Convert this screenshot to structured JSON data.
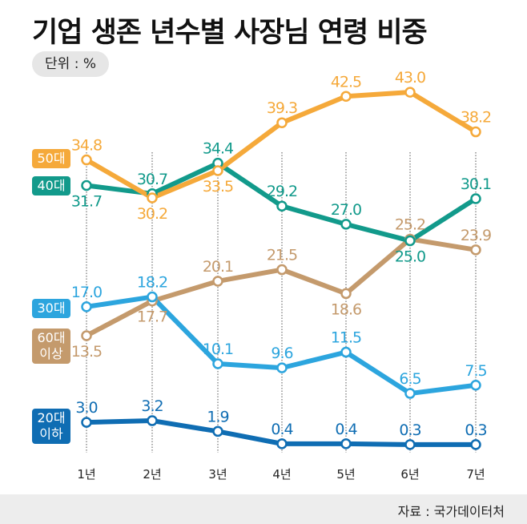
{
  "title": "기업 생존 년수별 사장님 연령 비중",
  "unit_label": "단위 : %",
  "source": "자료 : 국가데이터처",
  "chart_data": {
    "type": "line",
    "title": "기업 생존 년수별 사장님 연령 비중",
    "unit": "%",
    "categories": [
      "1년",
      "2년",
      "3년",
      "4년",
      "5년",
      "6년",
      "7년"
    ],
    "grid": "vertical dotted lines",
    "legend": "left",
    "series": [
      {
        "name": "50대",
        "color": "#f5a93a",
        "values": [
          34.8,
          30.2,
          33.5,
          39.3,
          42.5,
          43.0,
          38.2
        ],
        "labels": [
          "34.8",
          "30.2",
          "33.5",
          "39.3",
          "42.5",
          "43.0",
          "38.2"
        ]
      },
      {
        "name": "40대",
        "color": "#129a8b",
        "values": [
          31.7,
          30.7,
          34.4,
          29.2,
          27.0,
          25.0,
          30.1
        ],
        "labels": [
          "31.7",
          "30.7",
          "34.4",
          "29.2",
          "27.0",
          "25.0",
          "30.1"
        ]
      },
      {
        "name": "30대",
        "color": "#2ca5de",
        "values": [
          17.0,
          18.2,
          10.1,
          9.6,
          11.5,
          6.5,
          7.5
        ],
        "labels": [
          "17.0",
          "18.2",
          "10.1",
          "9.6",
          "11.5",
          "6.5",
          "7.5"
        ]
      },
      {
        "name": "60대 이상",
        "color": "#c49a6c",
        "values": [
          13.5,
          17.7,
          20.1,
          21.5,
          18.6,
          25.2,
          23.9
        ],
        "labels": [
          "13.5",
          "17.7",
          "20.1",
          "21.5",
          "18.6",
          "25.2",
          "23.9"
        ]
      },
      {
        "name": "20대 이하",
        "color": "#0f6db3",
        "values": [
          3.0,
          3.2,
          1.9,
          0.4,
          0.4,
          0.3,
          0.3
        ],
        "labels": [
          "3.0",
          "3.2",
          "1.9",
          "0.4",
          "0.4",
          "0.3",
          "0.3"
        ]
      }
    ]
  }
}
